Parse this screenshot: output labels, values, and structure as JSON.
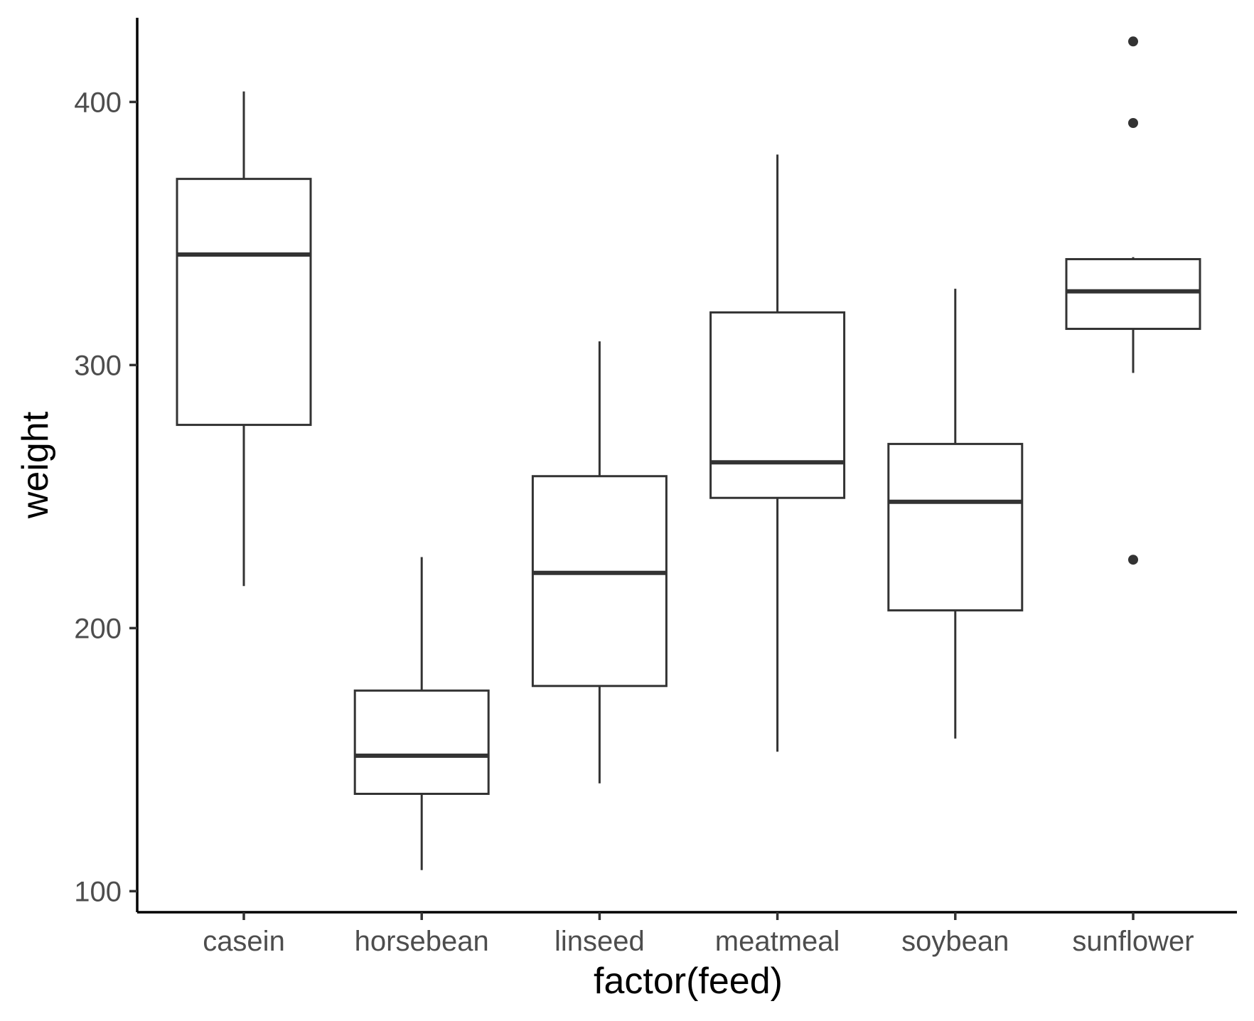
{
  "chart_data": {
    "type": "boxplot",
    "xlabel": "factor(feed)",
    "ylabel": "weight",
    "ylim": [
      92,
      432
    ],
    "y_ticks": [
      100,
      200,
      300,
      400
    ],
    "categories": [
      "casein",
      "horsebean",
      "linseed",
      "meatmeal",
      "soybean",
      "sunflower"
    ],
    "boxes": [
      {
        "category": "casein",
        "lower_whisker": 216,
        "q1": 277.25,
        "median": 342,
        "q3": 370.75,
        "upper_whisker": 404,
        "outliers": []
      },
      {
        "category": "horsebean",
        "lower_whisker": 108,
        "q1": 137,
        "median": 151.5,
        "q3": 176.25,
        "upper_whisker": 227,
        "outliers": []
      },
      {
        "category": "linseed",
        "lower_whisker": 141,
        "q1": 178,
        "median": 221,
        "q3": 257.75,
        "upper_whisker": 309,
        "outliers": []
      },
      {
        "category": "meatmeal",
        "lower_whisker": 153,
        "q1": 249.5,
        "median": 263,
        "q3": 320,
        "upper_whisker": 380,
        "outliers": []
      },
      {
        "category": "soybean",
        "lower_whisker": 158,
        "q1": 206.75,
        "median": 248,
        "q3": 270,
        "upper_whisker": 329,
        "outliers": []
      },
      {
        "category": "sunflower",
        "lower_whisker": 297,
        "q1": 313.75,
        "median": 328,
        "q3": 340.25,
        "upper_whisker": 341,
        "outliers": [
          423,
          392,
          226
        ]
      }
    ],
    "colors": {
      "stroke": "#333333",
      "fill": "#ffffff",
      "tick_label": "#4d4d4d",
      "axis": "#000000"
    },
    "grid": false,
    "legend": "none"
  }
}
